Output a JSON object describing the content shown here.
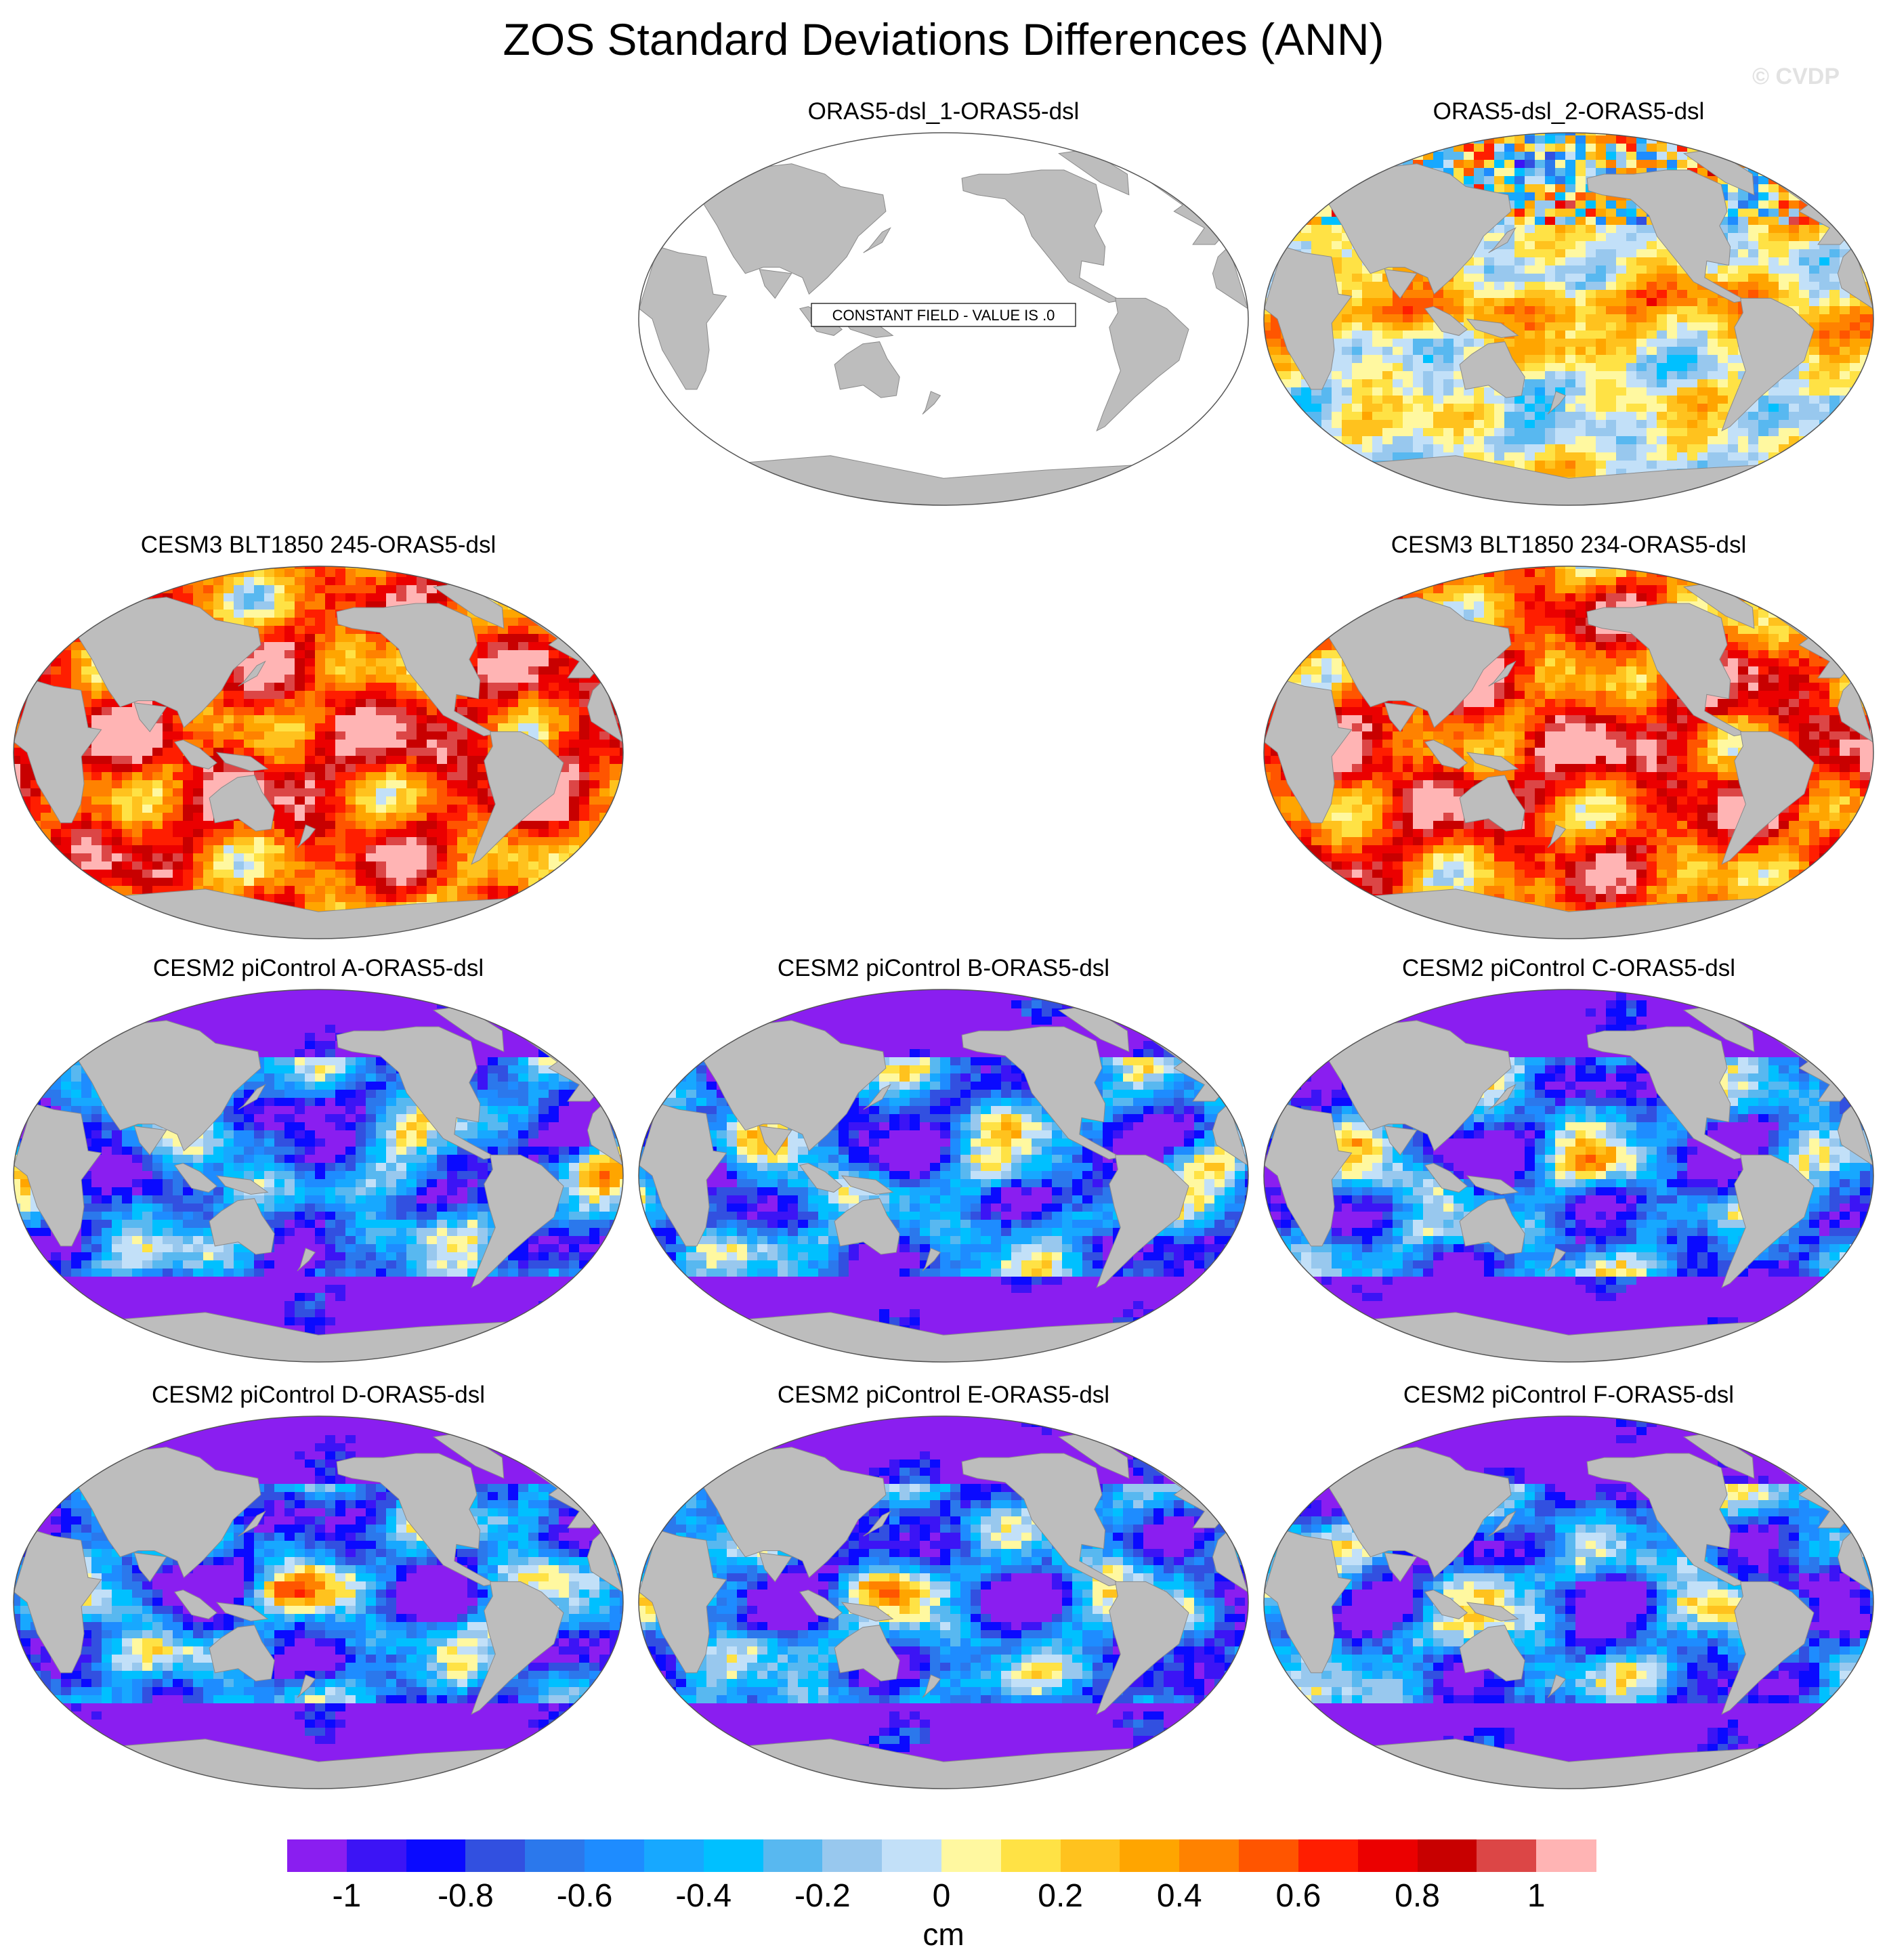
{
  "figure": {
    "title": "ZOS Standard Deviations Differences (ANN)",
    "watermark": "© CVDP"
  },
  "panels": [
    {
      "id": "p1",
      "title": "ORAS5-dsl_1-ORAS5-dsl",
      "constant_field": true,
      "constant_label": "CONSTANT FIELD - VALUE IS .0",
      "pattern": "constant",
      "seed": 1
    },
    {
      "id": "p2",
      "title": "ORAS5-dsl_2-ORAS5-dsl",
      "constant_field": false,
      "pattern": "mixed",
      "seed": 2
    },
    {
      "id": "p3",
      "title": "CESM3 BLT1850 245-ORAS5-dsl",
      "constant_field": false,
      "pattern": "positive",
      "seed": 3
    },
    {
      "id": "p4",
      "title": "CESM3 BLT1850 234-ORAS5-dsl",
      "constant_field": false,
      "pattern": "positive",
      "seed": 4
    },
    {
      "id": "p5",
      "title": "CESM2 piControl A-ORAS5-dsl",
      "constant_field": false,
      "pattern": "negative",
      "seed": 5
    },
    {
      "id": "p6",
      "title": "CESM2 piControl B-ORAS5-dsl",
      "constant_field": false,
      "pattern": "negative",
      "seed": 6
    },
    {
      "id": "p7",
      "title": "CESM2 piControl C-ORAS5-dsl",
      "constant_field": false,
      "pattern": "negative",
      "seed": 7
    },
    {
      "id": "p8",
      "title": "CESM2 piControl D-ORAS5-dsl",
      "constant_field": false,
      "pattern": "negative",
      "seed": 8
    },
    {
      "id": "p9",
      "title": "CESM2 piControl E-ORAS5-dsl",
      "constant_field": false,
      "pattern": "negative",
      "seed": 9
    },
    {
      "id": "p10",
      "title": "CESM2 piControl F-ORAS5-dsl",
      "constant_field": false,
      "pattern": "negative",
      "seed": 10
    }
  ],
  "colorbar": {
    "units": "cm",
    "colors": [
      "#8a1ef0",
      "#3c14f5",
      "#0a0aff",
      "#3250e0",
      "#2b78ec",
      "#1e8cff",
      "#17a8ff",
      "#00c0ff",
      "#58b8f0",
      "#98c8ee",
      "#c2e0f8",
      "#fff8a0",
      "#ffe245",
      "#ffc21e",
      "#ffa500",
      "#ff8200",
      "#ff5500",
      "#ff1e00",
      "#eb0000",
      "#c80000",
      "#dc4646",
      "#ffb4b4"
    ],
    "ticks": [
      "-1",
      "-0.8",
      "-0.6",
      "-0.4",
      "-0.2",
      "0",
      "0.2",
      "0.4",
      "0.6",
      "0.8",
      "1"
    ],
    "tick_values": [
      -1,
      -0.8,
      -0.6,
      -0.4,
      -0.2,
      0,
      0.2,
      0.4,
      0.6,
      0.8,
      1
    ]
  }
}
